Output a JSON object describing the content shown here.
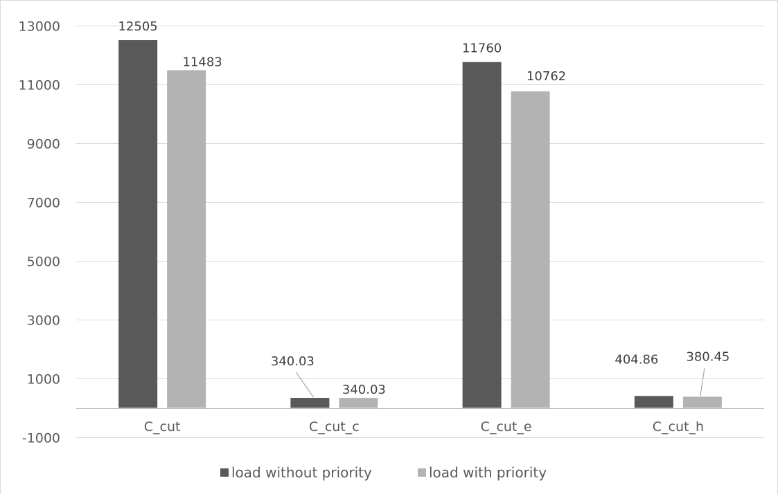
{
  "chart_data": {
    "type": "bar",
    "title": "",
    "xlabel": "",
    "ylabel": "",
    "categories": [
      "C_cut",
      "C_cut_c",
      "C_cut_e",
      "C_cut_h"
    ],
    "series": [
      {
        "name": "load without priority",
        "color": "#595959",
        "values": [
          12505,
          340.03,
          11760,
          404.86
        ],
        "labels": [
          "12505",
          "340.03",
          "11760",
          "404.86"
        ]
      },
      {
        "name": "load with priority",
        "color": "#b3b3b3",
        "values": [
          11483,
          340.03,
          10762,
          380.45
        ],
        "labels": [
          "11483",
          "340.03",
          "10762",
          "380.45"
        ]
      }
    ],
    "ylim": [
      -1000,
      13000
    ],
    "y_ticks": [
      -1000,
      1000,
      3000,
      5000,
      7000,
      9000,
      11000,
      13000
    ],
    "grid": true,
    "legend_position": "bottom"
  }
}
